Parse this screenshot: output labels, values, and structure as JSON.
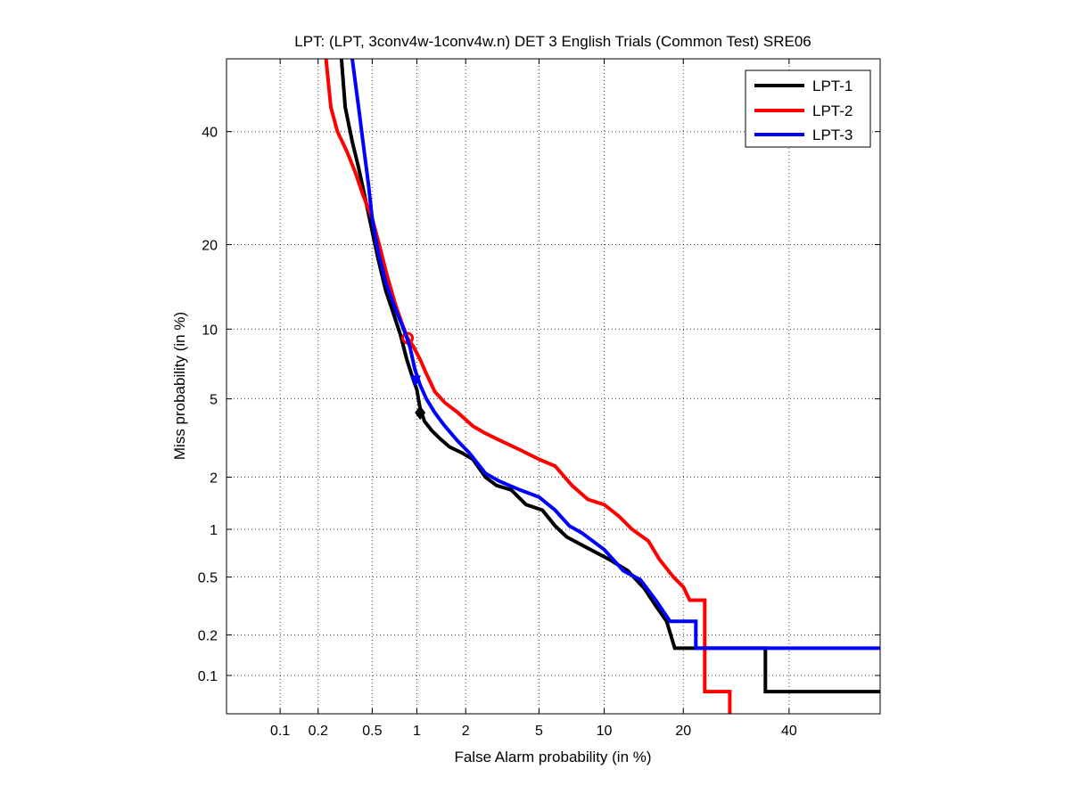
{
  "chart_data": {
    "type": "line",
    "title": "LPT: (LPT, 3conv4w-1conv4w.n) DET 3 English Trials (Common Test) SRE06",
    "xlabel": "False Alarm probability (in %)",
    "ylabel": "Miss probability (in %)",
    "scale": "normal-deviate (probit)",
    "xlim": [
      0.035,
      60
    ],
    "ylim": [
      0.05,
      55
    ],
    "x_ticks": [
      0.1,
      0.2,
      0.5,
      1,
      2,
      5,
      10,
      20,
      40
    ],
    "x_tick_labels": [
      "0.1",
      "0.2",
      "0.5",
      "1",
      "2",
      "5",
      "10",
      "20",
      "40"
    ],
    "y_ticks": [
      0.1,
      0.2,
      0.5,
      1,
      2,
      5,
      10,
      20,
      40
    ],
    "y_tick_labels": [
      "0.1",
      "0.2",
      "0.5",
      "1",
      "2",
      "5",
      "10",
      "20",
      "40"
    ],
    "grid": true,
    "legend_position": "top-right",
    "series": [
      {
        "name": "LPT-1",
        "color": "#000000",
        "marker_type": "diamond",
        "marker": [
          1.05,
          4.3
        ],
        "points": [
          [
            0.3,
            55
          ],
          [
            0.32,
            45
          ],
          [
            0.36,
            38
          ],
          [
            0.4,
            33
          ],
          [
            0.45,
            27
          ],
          [
            0.5,
            22
          ],
          [
            0.55,
            18
          ],
          [
            0.62,
            14
          ],
          [
            0.7,
            11.5
          ],
          [
            0.78,
            9.5
          ],
          [
            0.86,
            7.5
          ],
          [
            0.92,
            6.5
          ],
          [
            1.0,
            5.5
          ],
          [
            1.05,
            4.5
          ],
          [
            1.12,
            3.9
          ],
          [
            1.25,
            3.5
          ],
          [
            1.4,
            3.2
          ],
          [
            1.6,
            2.9
          ],
          [
            1.9,
            2.7
          ],
          [
            2.2,
            2.5
          ],
          [
            2.6,
            2.0
          ],
          [
            3.0,
            1.8
          ],
          [
            3.6,
            1.7
          ],
          [
            4.3,
            1.4
          ],
          [
            5.2,
            1.3
          ],
          [
            6.0,
            1.05
          ],
          [
            6.8,
            0.9
          ],
          [
            8.0,
            0.8
          ],
          [
            10.5,
            0.65
          ],
          [
            12.5,
            0.55
          ],
          [
            14.5,
            0.42
          ],
          [
            16.0,
            0.32
          ],
          [
            17.5,
            0.25
          ],
          [
            18.7,
            0.16
          ],
          [
            35.0,
            0.16
          ],
          [
            35.0,
            0.075
          ],
          [
            60.0,
            0.075
          ]
        ]
      },
      {
        "name": "LPT-2",
        "color": "#ff0000",
        "marker_type": "circle",
        "marker": [
          0.87,
          9.2
        ],
        "points": [
          [
            0.23,
            55
          ],
          [
            0.25,
            45
          ],
          [
            0.28,
            40
          ],
          [
            0.33,
            36
          ],
          [
            0.38,
            32
          ],
          [
            0.43,
            28
          ],
          [
            0.5,
            24
          ],
          [
            0.56,
            20
          ],
          [
            0.63,
            16
          ],
          [
            0.72,
            12.5
          ],
          [
            0.8,
            10.5
          ],
          [
            0.87,
            9.2
          ],
          [
            0.95,
            8.5
          ],
          [
            1.05,
            7.5
          ],
          [
            1.15,
            6.5
          ],
          [
            1.3,
            5.4
          ],
          [
            1.5,
            4.8
          ],
          [
            1.8,
            4.3
          ],
          [
            2.2,
            3.7
          ],
          [
            2.6,
            3.4
          ],
          [
            3.2,
            3.1
          ],
          [
            4.0,
            2.8
          ],
          [
            5.0,
            2.5
          ],
          [
            6.0,
            2.3
          ],
          [
            7.2,
            1.8
          ],
          [
            8.5,
            1.5
          ],
          [
            10.0,
            1.4
          ],
          [
            11.5,
            1.2
          ],
          [
            13.0,
            1.0
          ],
          [
            15.0,
            0.85
          ],
          [
            16.5,
            0.65
          ],
          [
            18.5,
            0.5
          ],
          [
            20.0,
            0.43
          ],
          [
            21.0,
            0.35
          ],
          [
            23.5,
            0.35
          ],
          [
            23.5,
            0.075
          ],
          [
            28.0,
            0.075
          ],
          [
            28.0,
            0.05
          ]
        ]
      },
      {
        "name": "LPT-3",
        "color": "#0000ff",
        "marker_type": "triangle",
        "marker": [
          0.98,
          6.1
        ],
        "points": [
          [
            0.36,
            55
          ],
          [
            0.4,
            45
          ],
          [
            0.43,
            38
          ],
          [
            0.47,
            30
          ],
          [
            0.5,
            24
          ],
          [
            0.55,
            19
          ],
          [
            0.62,
            15
          ],
          [
            0.72,
            12
          ],
          [
            0.82,
            10
          ],
          [
            0.9,
            8.5
          ],
          [
            0.97,
            6.8
          ],
          [
            1.05,
            5.8
          ],
          [
            1.15,
            5.0
          ],
          [
            1.3,
            4.3
          ],
          [
            1.5,
            3.7
          ],
          [
            1.8,
            3.1
          ],
          [
            2.1,
            2.7
          ],
          [
            2.6,
            2.1
          ],
          [
            3.1,
            1.9
          ],
          [
            4.0,
            1.7
          ],
          [
            5.0,
            1.55
          ],
          [
            6.0,
            1.3
          ],
          [
            7.0,
            1.05
          ],
          [
            8.0,
            0.95
          ],
          [
            10.0,
            0.75
          ],
          [
            12.0,
            0.55
          ],
          [
            14.0,
            0.48
          ],
          [
            16.0,
            0.35
          ],
          [
            18.0,
            0.25
          ],
          [
            22.0,
            0.25
          ],
          [
            22.0,
            0.16
          ],
          [
            60.0,
            0.16
          ]
        ]
      }
    ]
  }
}
